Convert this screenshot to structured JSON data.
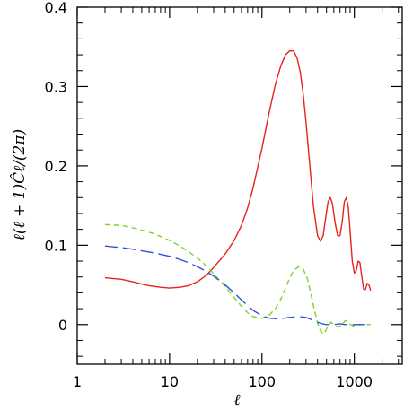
{
  "chart_data": {
    "type": "line",
    "xlabel": "ℓ",
    "ylabel": "ℓ(ℓ + 1)Ĉℓ/(2π)",
    "xscale": "log",
    "xlim": [
      1,
      3300
    ],
    "ylim": [
      -0.05,
      0.4
    ],
    "xticks": [
      {
        "value": 1,
        "label": "1"
      },
      {
        "value": 10,
        "label": "10"
      },
      {
        "value": 100,
        "label": "100"
      },
      {
        "value": 1000,
        "label": "1000"
      }
    ],
    "yticks": [
      {
        "value": 0,
        "label": "0"
      },
      {
        "value": 0.1,
        "label": "0.1"
      },
      {
        "value": 0.2,
        "label": "0.2"
      },
      {
        "value": 0.3,
        "label": "0.3"
      },
      {
        "value": 0.4,
        "label": "0.4"
      }
    ],
    "grid": false,
    "legend": "none",
    "series": [
      {
        "style": "solid",
        "color": "#e8221b",
        "points": [
          [
            2,
            0.059
          ],
          [
            3,
            0.057
          ],
          [
            4,
            0.054
          ],
          [
            5,
            0.051
          ],
          [
            6,
            0.049
          ],
          [
            8,
            0.047
          ],
          [
            10,
            0.046
          ],
          [
            13,
            0.047
          ],
          [
            16,
            0.049
          ],
          [
            20,
            0.054
          ],
          [
            25,
            0.062
          ],
          [
            30,
            0.072
          ],
          [
            40,
            0.089
          ],
          [
            50,
            0.106
          ],
          [
            60,
            0.125
          ],
          [
            70,
            0.147
          ],
          [
            80,
            0.172
          ],
          [
            100,
            0.222
          ],
          [
            120,
            0.268
          ],
          [
            140,
            0.303
          ],
          [
            160,
            0.326
          ],
          [
            180,
            0.34
          ],
          [
            200,
            0.345
          ],
          [
            220,
            0.345
          ],
          [
            240,
            0.336
          ],
          [
            260,
            0.318
          ],
          [
            280,
            0.29
          ],
          [
            300,
            0.255
          ],
          [
            330,
            0.2
          ],
          [
            360,
            0.15
          ],
          [
            400,
            0.112
          ],
          [
            430,
            0.105
          ],
          [
            460,
            0.112
          ],
          [
            490,
            0.135
          ],
          [
            520,
            0.155
          ],
          [
            550,
            0.16
          ],
          [
            580,
            0.152
          ],
          [
            620,
            0.128
          ],
          [
            660,
            0.112
          ],
          [
            700,
            0.112
          ],
          [
            740,
            0.13
          ],
          [
            780,
            0.155
          ],
          [
            820,
            0.16
          ],
          [
            860,
            0.148
          ],
          [
            900,
            0.118
          ],
          [
            950,
            0.08
          ],
          [
            1000,
            0.065
          ],
          [
            1050,
            0.068
          ],
          [
            1100,
            0.08
          ],
          [
            1150,
            0.078
          ],
          [
            1200,
            0.062
          ],
          [
            1260,
            0.045
          ],
          [
            1320,
            0.044
          ],
          [
            1380,
            0.052
          ],
          [
            1440,
            0.05
          ],
          [
            1500,
            0.043
          ]
        ]
      },
      {
        "style": "dashed",
        "color": "#7ed321",
        "points": [
          [
            2,
            0.126
          ],
          [
            3,
            0.125
          ],
          [
            4,
            0.122
          ],
          [
            5,
            0.119
          ],
          [
            7,
            0.114
          ],
          [
            10,
            0.106
          ],
          [
            13,
            0.099
          ],
          [
            16,
            0.092
          ],
          [
            20,
            0.084
          ],
          [
            25,
            0.074
          ],
          [
            30,
            0.064
          ],
          [
            40,
            0.048
          ],
          [
            50,
            0.034
          ],
          [
            60,
            0.023
          ],
          [
            70,
            0.015
          ],
          [
            80,
            0.01
          ],
          [
            100,
            0.008
          ],
          [
            120,
            0.012
          ],
          [
            140,
            0.02
          ],
          [
            160,
            0.032
          ],
          [
            180,
            0.046
          ],
          [
            200,
            0.059
          ],
          [
            220,
            0.068
          ],
          [
            250,
            0.073
          ],
          [
            280,
            0.07
          ],
          [
            310,
            0.058
          ],
          [
            340,
            0.038
          ],
          [
            370,
            0.018
          ],
          [
            400,
            0.002
          ],
          [
            430,
            -0.008
          ],
          [
            460,
            -0.012
          ],
          [
            490,
            -0.008
          ],
          [
            520,
            -0.001
          ],
          [
            560,
            0.003
          ],
          [
            600,
            0.0
          ],
          [
            650,
            -0.003
          ],
          [
            700,
            -0.002
          ],
          [
            750,
            0.001
          ],
          [
            800,
            0.005
          ],
          [
            850,
            0.004
          ],
          [
            900,
            0.0
          ],
          [
            1000,
            -0.002
          ],
          [
            1100,
            0.0
          ],
          [
            1200,
            0.0
          ],
          [
            1500,
            0.0
          ]
        ]
      },
      {
        "style": "long-dashed",
        "color": "#2f4fe0",
        "points": [
          [
            2,
            0.099
          ],
          [
            3,
            0.097
          ],
          [
            4,
            0.095
          ],
          [
            5,
            0.093
          ],
          [
            7,
            0.09
          ],
          [
            10,
            0.086
          ],
          [
            13,
            0.082
          ],
          [
            16,
            0.078
          ],
          [
            20,
            0.073
          ],
          [
            25,
            0.067
          ],
          [
            30,
            0.061
          ],
          [
            40,
            0.05
          ],
          [
            50,
            0.04
          ],
          [
            60,
            0.031
          ],
          [
            70,
            0.024
          ],
          [
            80,
            0.018
          ],
          [
            100,
            0.011
          ],
          [
            120,
            0.008
          ],
          [
            150,
            0.007
          ],
          [
            200,
            0.009
          ],
          [
            250,
            0.01
          ],
          [
            300,
            0.009
          ],
          [
            350,
            0.006
          ],
          [
            400,
            0.003
          ],
          [
            450,
            0.001
          ],
          [
            500,
            0.0
          ],
          [
            600,
            0.0
          ],
          [
            700,
            0.001
          ],
          [
            800,
            0.0
          ],
          [
            1000,
            0.0
          ],
          [
            1200,
            0.0
          ],
          [
            1500,
            0.0
          ]
        ]
      }
    ]
  }
}
